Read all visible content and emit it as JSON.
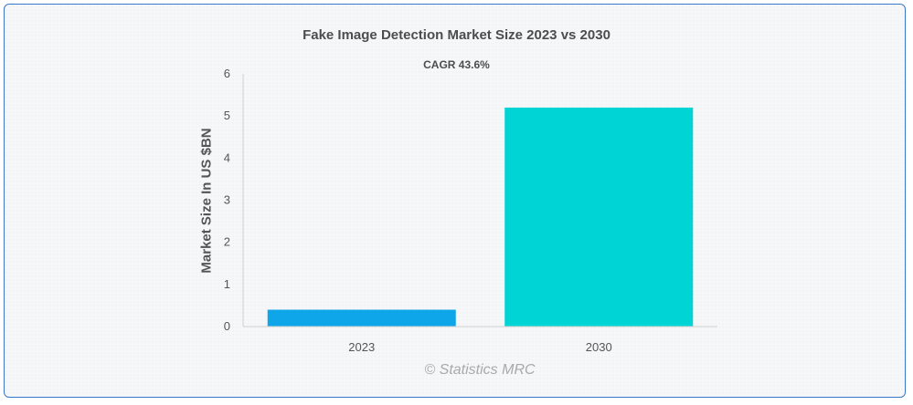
{
  "chart_data": {
    "type": "bar",
    "title": "Fake Image Detection Market Size 2023 vs 2030",
    "subtitle": "CAGR 43.6%",
    "xlabel": "",
    "ylabel": "Market Size In US $BN",
    "categories": [
      "2023",
      "2030"
    ],
    "values": [
      0.4,
      5.2
    ],
    "colors": [
      "#0ea5e9",
      "#00d4d4"
    ],
    "ylim": [
      0,
      6
    ],
    "yticks": [
      0,
      1,
      2,
      3,
      4,
      5,
      6
    ],
    "grid": false,
    "legend": "none"
  },
  "watermark": "© Statistics MRC"
}
